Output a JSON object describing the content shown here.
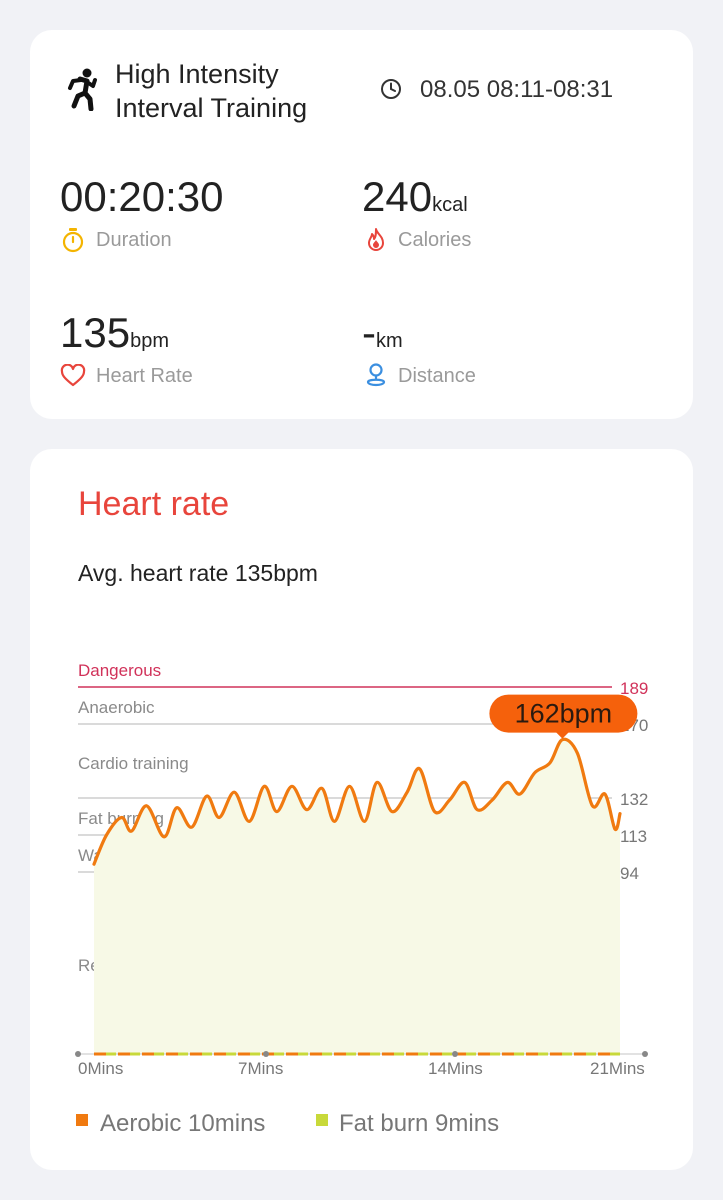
{
  "summary": {
    "title_line1": "High Intensity",
    "title_line2": "Interval Training",
    "time_range": "08.05 08:11-08:31",
    "duration": {
      "value": "00:20:30",
      "label": "Duration"
    },
    "calories": {
      "value": "240",
      "unit": "kcal",
      "label": "Calories"
    },
    "heart_rate": {
      "value": "135",
      "unit": "bpm",
      "label": "Heart Rate"
    },
    "distance": {
      "value": "-",
      "unit": "km",
      "label": "Distance"
    },
    "icons": [
      "running-person-icon",
      "clock-icon",
      "stopwatch-icon",
      "flame-icon",
      "heart-icon",
      "location-pin-icon"
    ],
    "colors": {
      "duration": "#f4b400",
      "calories": "#e8453c",
      "heart": "#e8453c",
      "distance": "#3b8fe0"
    }
  },
  "heart_rate": {
    "title": "Heart rate",
    "avg_text": "Avg. heart rate 135bpm",
    "legend": [
      {
        "label": "Aerobic 10mins",
        "color": "#f07a10"
      },
      {
        "label": "Fat burn 9mins",
        "color": "#c8d93a"
      }
    ]
  },
  "chart_data": {
    "type": "line",
    "title": "",
    "xlabel": "",
    "ylabel": "",
    "x_ticks": [
      "0Mins",
      "7Mins",
      "14Mins",
      "21Mins"
    ],
    "xlim": [
      0,
      21
    ],
    "zones": [
      {
        "name": "Dangerous",
        "threshold": 189,
        "color": "#d1325a"
      },
      {
        "name": "Anaerobic",
        "threshold": 170
      },
      {
        "name": "Cardio training",
        "threshold": 132
      },
      {
        "name": "Fat burning",
        "threshold": 113
      },
      {
        "name": "Warm up",
        "threshold": 94
      },
      {
        "name": "Resting"
      }
    ],
    "peak_label": "162bpm",
    "peak": {
      "x": 18.7,
      "y": 162
    },
    "series": [
      {
        "color": "#f07a10",
        "x": [
          0,
          0.5,
          1.1,
          1.5,
          2.1,
          2.8,
          3.3,
          3.9,
          4.5,
          5.0,
          5.6,
          6.2,
          6.8,
          7.3,
          7.9,
          8.5,
          9.1,
          9.6,
          10.2,
          10.8,
          11.3,
          11.9,
          12.5,
          13.0,
          13.6,
          14.2,
          14.8,
          15.3,
          15.9,
          16.5,
          17.0,
          17.6,
          18.2,
          18.7,
          19.3,
          19.9,
          20.4,
          20.8,
          21.0
        ],
        "y": [
          98,
          113,
          122,
          115,
          128,
          112,
          127,
          117,
          133,
          122,
          135,
          120,
          138,
          125,
          138,
          126,
          137,
          120,
          138,
          120,
          140,
          125,
          135,
          147,
          125,
          131,
          140,
          126,
          131,
          140,
          134,
          145,
          150,
          162,
          155,
          128,
          134,
          116,
          124
        ]
      }
    ]
  }
}
